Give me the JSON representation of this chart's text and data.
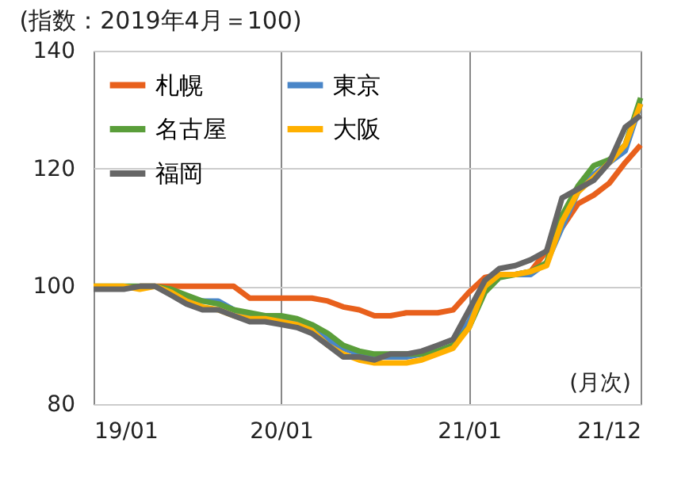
{
  "chart_data": {
    "type": "line",
    "title": "(指数：2019年4月＝100)",
    "x": [
      "2019-01",
      "2019-02",
      "2019-03",
      "2019-04",
      "2019-05",
      "2019-06",
      "2019-07",
      "2019-08",
      "2019-09",
      "2019-10",
      "2019-11",
      "2019-12",
      "2020-01",
      "2020-02",
      "2020-03",
      "2020-04",
      "2020-05",
      "2020-06",
      "2020-07",
      "2020-08",
      "2020-09",
      "2020-10",
      "2020-11",
      "2020-12",
      "2021-01",
      "2021-02",
      "2021-03",
      "2021-04",
      "2021-05",
      "2021-06",
      "2021-07",
      "2021-08",
      "2021-09",
      "2021-10",
      "2021-11",
      "2021-12"
    ],
    "series": [
      {
        "name": "札幌",
        "color": "#e8601c",
        "values": [
          null,
          null,
          null,
          100,
          100,
          100,
          100,
          100,
          100,
          100,
          98,
          98,
          98,
          98,
          98,
          97.5,
          96.5,
          96,
          95,
          95,
          95.5,
          95.5,
          95.5,
          96,
          99,
          101.5,
          102,
          102,
          102.5,
          106,
          110,
          114,
          115.5,
          117.5,
          121,
          124
        ]
      },
      {
        "name": "東京",
        "color": "#4a86c8",
        "values": [
          null,
          null,
          null,
          null,
          null,
          99,
          98,
          97.5,
          97.5,
          96,
          95,
          95,
          94.5,
          94,
          93,
          91,
          89.5,
          88.5,
          88,
          88,
          88,
          88.5,
          89,
          90,
          94,
          100,
          102,
          102,
          102,
          104,
          110,
          116,
          119,
          121,
          123,
          131
        ]
      },
      {
        "name": "名古屋",
        "color": "#5a9e3a",
        "values": [
          100,
          100,
          100,
          100,
          100,
          99.5,
          98.5,
          97.5,
          97,
          96,
          95.5,
          95,
          95,
          94.5,
          93.5,
          92,
          90,
          89,
          88.5,
          88.5,
          88.5,
          88.5,
          89,
          90,
          93,
          99,
          101.5,
          102,
          102.5,
          104,
          112,
          117,
          120.5,
          121.5,
          124,
          132
        ]
      },
      {
        "name": "大阪",
        "color": "#ffb000",
        "values": [
          100,
          100,
          100,
          99.5,
          100,
          99,
          97.5,
          96.5,
          96,
          95,
          94.5,
          94.5,
          94,
          93.5,
          92.5,
          90,
          88.5,
          87.5,
          87,
          87,
          87,
          87.5,
          88.5,
          89.5,
          93,
          100,
          102,
          102,
          102.5,
          103.5,
          111,
          116,
          118.5,
          121,
          124,
          131
        ]
      },
      {
        "name": "福岡",
        "color": "#666666",
        "values": [
          99.5,
          99.5,
          99.5,
          100,
          100,
          98.5,
          97,
          96,
          96,
          95,
          94,
          94,
          93.5,
          93,
          92,
          90,
          88,
          88,
          87.5,
          88.5,
          88.5,
          89,
          90,
          91,
          96,
          101,
          103,
          103.5,
          104.5,
          106,
          115,
          116.5,
          118,
          121,
          127,
          129
        ]
      }
    ],
    "xlim": [
      "2019-01",
      "2021-12"
    ],
    "xticks": [
      {
        "value": "2019-01",
        "label": "19/01"
      },
      {
        "value": "2020-01",
        "label": "20/01"
      },
      {
        "value": "2021-01",
        "label": "21/01"
      },
      {
        "value": "2021-12",
        "label": "21/12"
      }
    ],
    "ylim": [
      80,
      140
    ],
    "yticks": [
      80,
      100,
      120,
      140
    ],
    "grid": true,
    "legend": "top left",
    "line_style": "solid",
    "annotations": [
      "(月次)"
    ]
  }
}
